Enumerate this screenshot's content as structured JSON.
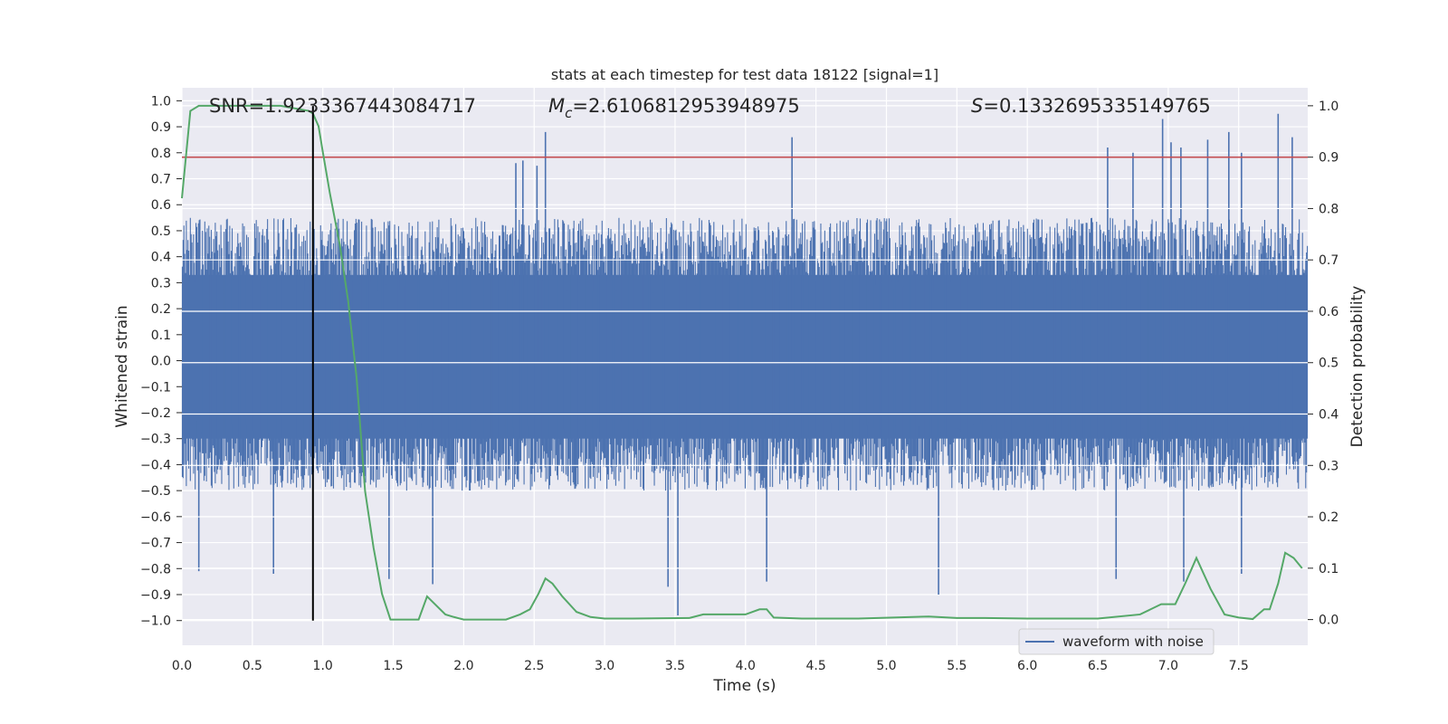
{
  "chart_data": {
    "type": "line",
    "title": "stats at each timestep for test data 18122 [signal=1]",
    "xlabel": "Time (s)",
    "ylabel": "Whitened strain",
    "y2label": "Detection probability",
    "xlim": [
      0.0,
      7.99
    ],
    "ylim": [
      -1.095,
      1.05
    ],
    "y2lim": [
      -0.05,
      1.035
    ],
    "xticks": [
      "0.0",
      "0.5",
      "1.0",
      "1.5",
      "2.0",
      "2.5",
      "3.0",
      "3.5",
      "4.0",
      "4.5",
      "5.0",
      "5.5",
      "6.0",
      "6.5",
      "7.0",
      "7.5"
    ],
    "yticks": [
      "1.0",
      "0.9",
      "0.8",
      "0.7",
      "0.6",
      "0.5",
      "0.4",
      "0.3",
      "0.2",
      "0.1",
      "0.0",
      "−0.1",
      "−0.2",
      "−0.3",
      "−0.4",
      "−0.5",
      "−0.6",
      "−0.7",
      "−0.8",
      "−0.9",
      "−1.0"
    ],
    "y2ticks": [
      "1.0",
      "0.9",
      "0.8",
      "0.7",
      "0.6",
      "0.5",
      "0.4",
      "0.3",
      "0.2",
      "0.1",
      "0.0"
    ],
    "grid": true,
    "legend": {
      "location": "lower center-right",
      "entries": [
        "waveform with noise"
      ]
    },
    "annotations": {
      "snr": "SNR=1.9233367443084717",
      "mc_symbol": "M",
      "mc_sub": "c",
      "mc_value": "=2.6106812953948975",
      "s_symbol": "S",
      "s_value": "=0.1332695335149765"
    },
    "threshold_line": {
      "y2": 0.9,
      "color": "#c44e52"
    },
    "merger_line": {
      "x": 0.93,
      "y_top": 0.98,
      "y_bottom": -1.0,
      "color": "#000000"
    },
    "series": [
      {
        "name": "waveform with noise",
        "color": "#4c72b0",
        "envelope_positive": 0.55,
        "envelope_negative": -0.5,
        "max_abs": 0.98,
        "samples": 16384,
        "notable_peaks": [
          {
            "x": 2.37,
            "y": 0.76
          },
          {
            "x": 2.42,
            "y": 0.77
          },
          {
            "x": 2.52,
            "y": 0.75
          },
          {
            "x": 2.58,
            "y": 0.88
          },
          {
            "x": 4.33,
            "y": 0.86
          },
          {
            "x": 6.57,
            "y": 0.82
          },
          {
            "x": 6.75,
            "y": 0.8
          },
          {
            "x": 6.96,
            "y": 0.93
          },
          {
            "x": 7.02,
            "y": 0.84
          },
          {
            "x": 7.09,
            "y": 0.82
          },
          {
            "x": 7.28,
            "y": 0.85
          },
          {
            "x": 7.43,
            "y": 0.88
          },
          {
            "x": 7.52,
            "y": 0.8
          },
          {
            "x": 7.78,
            "y": 0.95
          },
          {
            "x": 7.88,
            "y": 0.86
          },
          {
            "x": 0.12,
            "y": -0.81
          },
          {
            "x": 0.65,
            "y": -0.82
          },
          {
            "x": 1.47,
            "y": -0.84
          },
          {
            "x": 1.78,
            "y": -0.86
          },
          {
            "x": 3.45,
            "y": -0.87
          },
          {
            "x": 3.52,
            "y": -0.98
          },
          {
            "x": 4.15,
            "y": -0.85
          },
          {
            "x": 5.37,
            "y": -0.9
          },
          {
            "x": 6.63,
            "y": -0.84
          },
          {
            "x": 7.11,
            "y": -0.85
          },
          {
            "x": 7.52,
            "y": -0.82
          }
        ]
      },
      {
        "name": "Detection probability",
        "color": "#55a868",
        "axis": "right",
        "x": [
          0.0,
          0.06,
          0.12,
          0.2,
          0.3,
          0.5,
          0.7,
          0.9,
          0.93,
          0.97,
          1.0,
          1.05,
          1.12,
          1.18,
          1.24,
          1.3,
          1.36,
          1.42,
          1.48,
          1.55,
          1.62,
          1.68,
          1.74,
          1.87,
          1.93,
          2.0,
          2.2,
          2.3,
          2.4,
          2.47,
          2.53,
          2.58,
          2.63,
          2.7,
          2.8,
          2.9,
          3.0,
          3.2,
          3.6,
          3.7,
          3.8,
          4.0,
          4.1,
          4.15,
          4.2,
          4.4,
          4.8,
          5.3,
          5.5,
          5.7,
          6.0,
          6.5,
          6.8,
          6.95,
          7.05,
          7.12,
          7.2,
          7.3,
          7.4,
          7.5,
          7.6,
          7.68,
          7.72,
          7.78,
          7.83,
          7.89,
          7.95
        ],
        "y": [
          0.82,
          0.99,
          1.0,
          1.0,
          1.0,
          1.0,
          1.0,
          0.99,
          0.985,
          0.96,
          0.91,
          0.83,
          0.73,
          0.62,
          0.47,
          0.25,
          0.14,
          0.05,
          0.0,
          0.0,
          0.0,
          0.0,
          0.045,
          0.01,
          0.005,
          0.0,
          0.0,
          0.0,
          0.01,
          0.02,
          0.05,
          0.08,
          0.07,
          0.045,
          0.015,
          0.005,
          0.002,
          0.002,
          0.003,
          0.01,
          0.01,
          0.01,
          0.02,
          0.02,
          0.004,
          0.002,
          0.002,
          0.006,
          0.003,
          0.003,
          0.002,
          0.002,
          0.01,
          0.03,
          0.03,
          0.07,
          0.12,
          0.06,
          0.01,
          0.004,
          0.001,
          0.02,
          0.02,
          0.07,
          0.13,
          0.12,
          0.1
        ]
      }
    ]
  }
}
